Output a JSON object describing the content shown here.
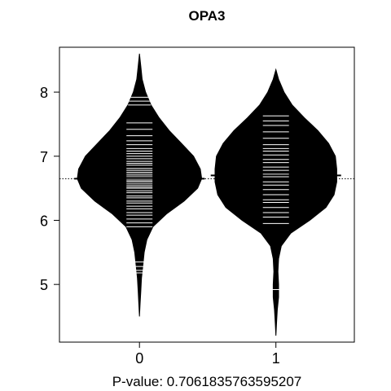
{
  "chart_data": {
    "type": "beanplot",
    "title": "OPA3",
    "xlabel": "P-value: 0.7061835763595207",
    "ylabel": "",
    "categories": [
      "0",
      "1"
    ],
    "ylim": [
      4.1,
      8.7
    ],
    "yticks": [
      5,
      6,
      7,
      8
    ],
    "overall_reference_line": 6.65,
    "grid": false,
    "legend": "none",
    "colors": {
      "fill": "#000000",
      "lines": "#ffffff",
      "frame": "#000000"
    },
    "series": [
      {
        "name": "0",
        "mean": 6.65,
        "density": [
          [
            4.5,
            0.0
          ],
          [
            4.7,
            0.01
          ],
          [
            4.9,
            0.02
          ],
          [
            5.1,
            0.03
          ],
          [
            5.3,
            0.05
          ],
          [
            5.5,
            0.07
          ],
          [
            5.7,
            0.11
          ],
          [
            5.9,
            0.2
          ],
          [
            6.1,
            0.4
          ],
          [
            6.3,
            0.66
          ],
          [
            6.5,
            0.86
          ],
          [
            6.65,
            0.92
          ],
          [
            6.8,
            0.9
          ],
          [
            7.0,
            0.8
          ],
          [
            7.2,
            0.62
          ],
          [
            7.4,
            0.44
          ],
          [
            7.6,
            0.29
          ],
          [
            7.8,
            0.17
          ],
          [
            8.0,
            0.09
          ],
          [
            8.2,
            0.04
          ],
          [
            8.4,
            0.02
          ],
          [
            8.6,
            0.0
          ]
        ],
        "observations": [
          5.18,
          5.22,
          5.28,
          5.35,
          5.9,
          5.96,
          6.02,
          6.08,
          6.12,
          6.18,
          6.22,
          6.27,
          6.3,
          6.35,
          6.38,
          6.43,
          6.46,
          6.5,
          6.52,
          6.55,
          6.58,
          6.61,
          6.63,
          6.66,
          6.69,
          6.72,
          6.75,
          6.78,
          6.81,
          6.86,
          6.89,
          6.92,
          6.96,
          7.0,
          7.04,
          7.08,
          7.12,
          7.18,
          7.24,
          7.32,
          7.42,
          7.52,
          7.8,
          7.86,
          7.92
        ]
      },
      {
        "name": "1",
        "mean": 6.7,
        "density": [
          [
            4.2,
            0.0
          ],
          [
            4.4,
            0.01
          ],
          [
            4.6,
            0.02
          ],
          [
            4.8,
            0.04
          ],
          [
            5.0,
            0.04
          ],
          [
            5.2,
            0.03
          ],
          [
            5.4,
            0.04
          ],
          [
            5.6,
            0.08
          ],
          [
            5.8,
            0.22
          ],
          [
            6.0,
            0.5
          ],
          [
            6.2,
            0.74
          ],
          [
            6.4,
            0.86
          ],
          [
            6.6,
            0.9
          ],
          [
            6.8,
            0.9
          ],
          [
            7.0,
            0.88
          ],
          [
            7.2,
            0.78
          ],
          [
            7.4,
            0.62
          ],
          [
            7.6,
            0.42
          ],
          [
            7.8,
            0.24
          ],
          [
            8.0,
            0.12
          ],
          [
            8.2,
            0.04
          ],
          [
            8.35,
            0.0
          ]
        ],
        "observations": [
          4.92,
          5.95,
          6.05,
          6.12,
          6.2,
          6.28,
          6.32,
          6.4,
          6.48,
          6.55,
          6.6,
          6.68,
          6.72,
          6.78,
          6.83,
          6.9,
          6.95,
          7.02,
          7.08,
          7.12,
          7.18,
          7.28,
          7.38,
          7.48,
          7.55,
          7.63
        ]
      }
    ]
  }
}
